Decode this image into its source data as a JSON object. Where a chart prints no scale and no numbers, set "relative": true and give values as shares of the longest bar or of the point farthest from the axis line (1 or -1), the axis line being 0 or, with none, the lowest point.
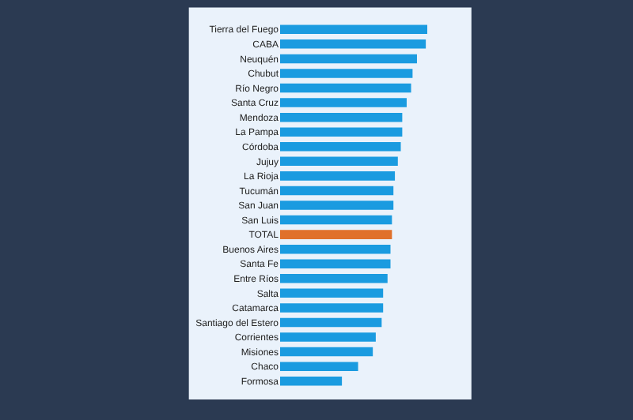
{
  "chart_data": {
    "type": "bar",
    "orientation": "horizontal",
    "relative": true,
    "categories": [
      "Tierra del Fuego",
      "CABA",
      "Neuquén",
      "Chubut",
      "Río Negro",
      "Santa Cruz",
      "Mendoza",
      "La Pampa",
      "Córdoba",
      "Jujuy",
      "La Rioja",
      "Tucumán",
      "San Juan",
      "San Luis",
      "TOTAL",
      "Buenos Aires",
      "Santa Fe",
      "Entre Ríos",
      "Salta",
      "Catamarca",
      "Santiago del Estero",
      "Corrientes",
      "Misiones",
      "Chaco",
      "Formosa"
    ],
    "values": [
      1,
      0.99,
      0.93,
      0.9,
      0.89,
      0.86,
      0.83,
      0.83,
      0.82,
      0.8,
      0.78,
      0.77,
      0.77,
      0.76,
      0.76,
      0.75,
      0.75,
      0.73,
      0.7,
      0.7,
      0.69,
      0.65,
      0.63,
      0.53,
      0.42
    ],
    "colors": [
      "#1a9be0",
      "#1a9be0",
      "#1a9be0",
      "#1a9be0",
      "#1a9be0",
      "#1a9be0",
      "#1a9be0",
      "#1a9be0",
      "#1a9be0",
      "#1a9be0",
      "#1a9be0",
      "#1a9be0",
      "#1a9be0",
      "#1a9be0",
      "#e0702a",
      "#1a9be0",
      "#1a9be0",
      "#1a9be0",
      "#1a9be0",
      "#1a9be0",
      "#1a9be0",
      "#1a9be0",
      "#1a9be0",
      "#1a9be0",
      "#1a9be0"
    ]
  }
}
